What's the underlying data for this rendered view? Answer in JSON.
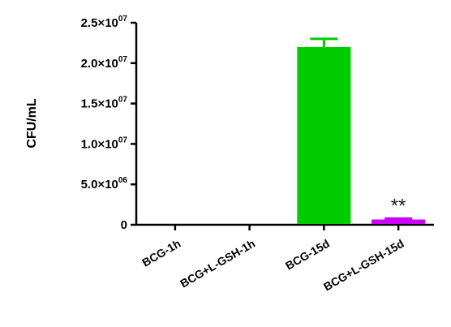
{
  "chart_data": {
    "type": "bar",
    "ylabel": "CFU/mL",
    "xlabel": "",
    "categories": [
      "BCG-1h",
      "BCG+L-GSH-1h",
      "BCG-15d",
      "BCG+L-GSH-15d"
    ],
    "values": [
      0,
      0,
      22000000,
      650000
    ],
    "error": [
      0,
      0,
      1000000,
      120000
    ],
    "colors": [
      "#00cc00",
      "#00cc00",
      "#00cc00",
      "#cc00ff"
    ],
    "ylim": [
      0,
      25000000
    ],
    "yticks": [
      {
        "value": 0,
        "mant": "0",
        "exp": ""
      },
      {
        "value": 5000000,
        "mant": "5.0×10",
        "exp": "06"
      },
      {
        "value": 10000000,
        "mant": "1.0×10",
        "exp": "07"
      },
      {
        "value": 15000000,
        "mant": "1.5×10",
        "exp": "07"
      },
      {
        "value": 20000000,
        "mant": "2.0×10",
        "exp": "07"
      },
      {
        "value": 25000000,
        "mant": "2.5×10",
        "exp": "07"
      }
    ],
    "annotations": [
      {
        "category": "BCG+L-GSH-15d",
        "text": "**"
      }
    ],
    "grid": false,
    "legend": "none"
  }
}
